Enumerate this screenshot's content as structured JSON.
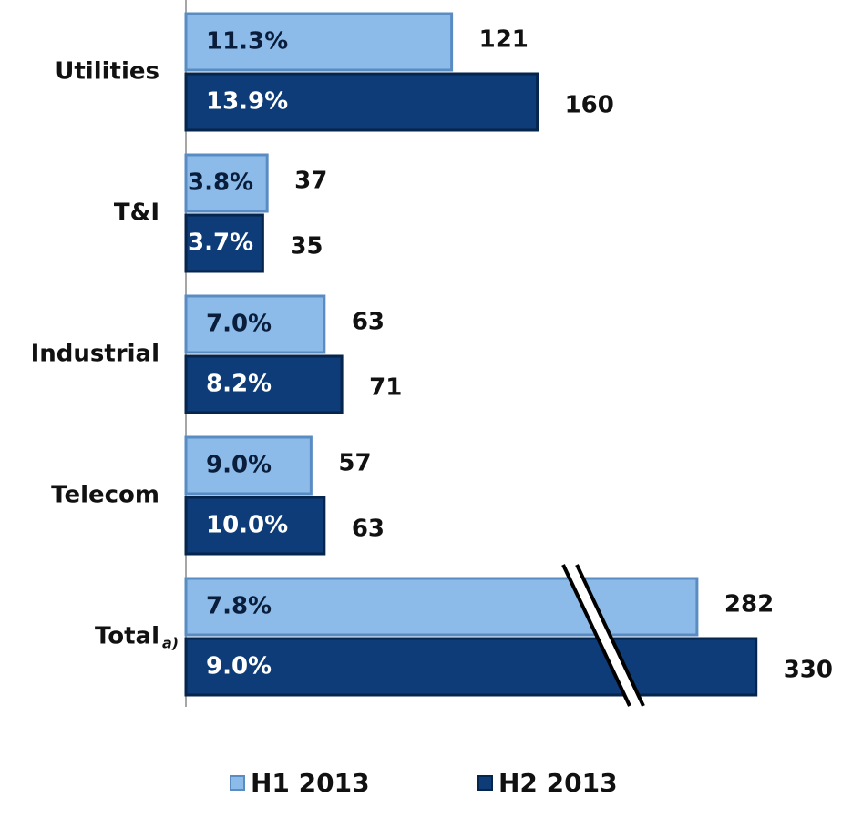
{
  "chart_data": {
    "type": "bar",
    "orientation": "horizontal",
    "categories": [
      "Utilities",
      "T&I",
      "Industrial",
      "Telecom",
      "Total"
    ],
    "series": [
      {
        "name": "H1 2013",
        "color": "#8cbbe9",
        "values": [
          121,
          37,
          63,
          57,
          282
        ],
        "percent_labels": [
          "11.3%",
          "3.8%",
          "7.0%",
          "9.0%",
          "7.8%"
        ]
      },
      {
        "name": "H2 2013",
        "color": "#0d3c78",
        "values": [
          160,
          35,
          71,
          63,
          330
        ],
        "percent_labels": [
          "13.9%",
          "3.7%",
          "8.2%",
          "10.0%",
          "9.0%"
        ]
      }
    ],
    "xlim": [
      0,
      170
    ],
    "axis_break": true,
    "annotation": "a)",
    "legend": "bottom"
  }
}
